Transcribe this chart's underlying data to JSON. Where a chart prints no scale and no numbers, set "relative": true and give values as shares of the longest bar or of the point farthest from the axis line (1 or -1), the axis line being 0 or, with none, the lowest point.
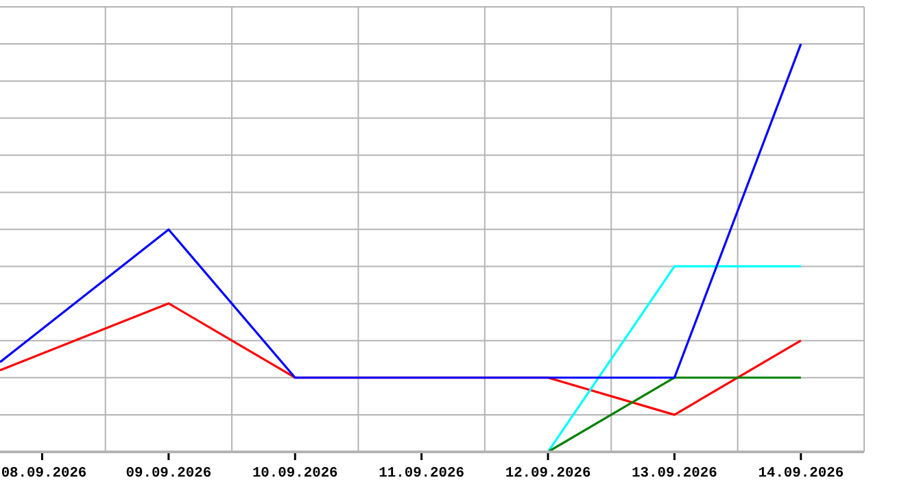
{
  "chart_data": {
    "type": "line",
    "relative": true,
    "x": [
      "2026-09-07T16:00",
      "2026-09-09",
      "2026-09-10",
      "2026-09-11",
      "2026-09-12",
      "2026-09-13",
      "2026-09-14"
    ],
    "xlim": [
      "2026-09-07T16:00",
      "2026-09-14T12:00"
    ],
    "xticks": [
      {
        "value": "2026-09-08",
        "label": "08.09.2026"
      },
      {
        "value": "2026-09-09",
        "label": "09.09.2026"
      },
      {
        "value": "2026-09-10",
        "label": "10.09.2026"
      },
      {
        "value": "2026-09-11",
        "label": "11.09.2026"
      },
      {
        "value": "2026-09-12",
        "label": "12.09.2026"
      },
      {
        "value": "2026-09-13",
        "label": "13.09.2026"
      },
      {
        "value": "2026-09-14",
        "label": "14.09.2026"
      }
    ],
    "series": [
      {
        "color": "#ff0000",
        "values": [
          0.2,
          0.364,
          0.182,
          0.182,
          0.182,
          0.091,
          0.273
        ]
      },
      {
        "color": "#00ffff",
        "x": [
          "2026-09-12",
          "2026-09-13",
          "2026-09-14"
        ],
        "values": [
          0,
          0.455,
          0.455
        ]
      },
      {
        "color": "#008000",
        "x": [
          "2026-09-12",
          "2026-09-13",
          "2026-09-14"
        ],
        "values": [
          0,
          0.182,
          0.182
        ]
      },
      {
        "color": "#0000ff",
        "values": [
          0.22,
          0.545,
          0.182,
          0.182,
          0.182,
          0.182,
          1
        ]
      }
    ],
    "grid": true,
    "marker": "none",
    "line_style": "solid"
  }
}
